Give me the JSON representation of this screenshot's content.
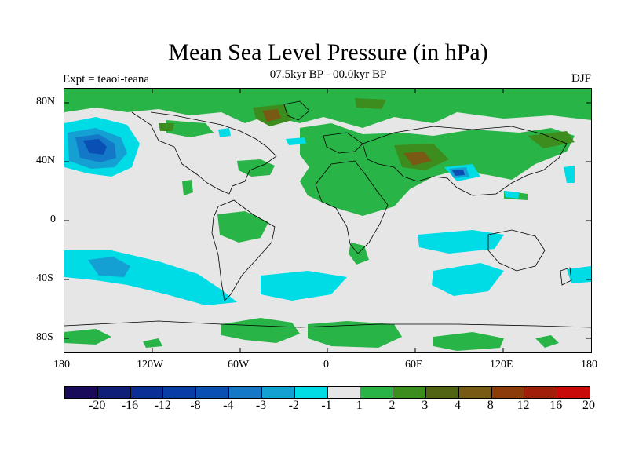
{
  "title": "Mean Sea Level Pressure (in hPa)",
  "subtitle": "07.5kyr BP - 00.0kyr BP",
  "experiment": "Expt = teaoi-teana",
  "season": "DJF",
  "axes": {
    "lat_labels": [
      "80N",
      "40N",
      "0",
      "40S",
      "80S"
    ],
    "lon_labels": [
      "180",
      "120W",
      "60W",
      "0",
      "60E",
      "120E",
      "180"
    ]
  },
  "colorbar": {
    "colors": [
      "#1a0a5a",
      "#0f1e78",
      "#0a2d96",
      "#0a3ca8",
      "#0a50b4",
      "#1478c8",
      "#14a0d2",
      "#00dce6",
      "#e6e6e6",
      "#28b446",
      "#3c8c1e",
      "#506414",
      "#785a14",
      "#8c3c0a",
      "#a01e0a",
      "#c80a0a"
    ],
    "labels": [
      "-20",
      "-16",
      "-12",
      "-8",
      "-4",
      "-3",
      "-2",
      "-1",
      "1",
      "2",
      "3",
      "4",
      "8",
      "12",
      "16",
      "20"
    ]
  },
  "colors": {
    "background_field": "#e6e6e6",
    "green_positive": "#28b446",
    "dark_green": "#3c8c1e",
    "brown": "#785a14",
    "cyan_negative": "#00dce6",
    "mid_blue": "#14a0d2",
    "blue": "#1478c8",
    "dark_blue": "#0a50b4"
  }
}
